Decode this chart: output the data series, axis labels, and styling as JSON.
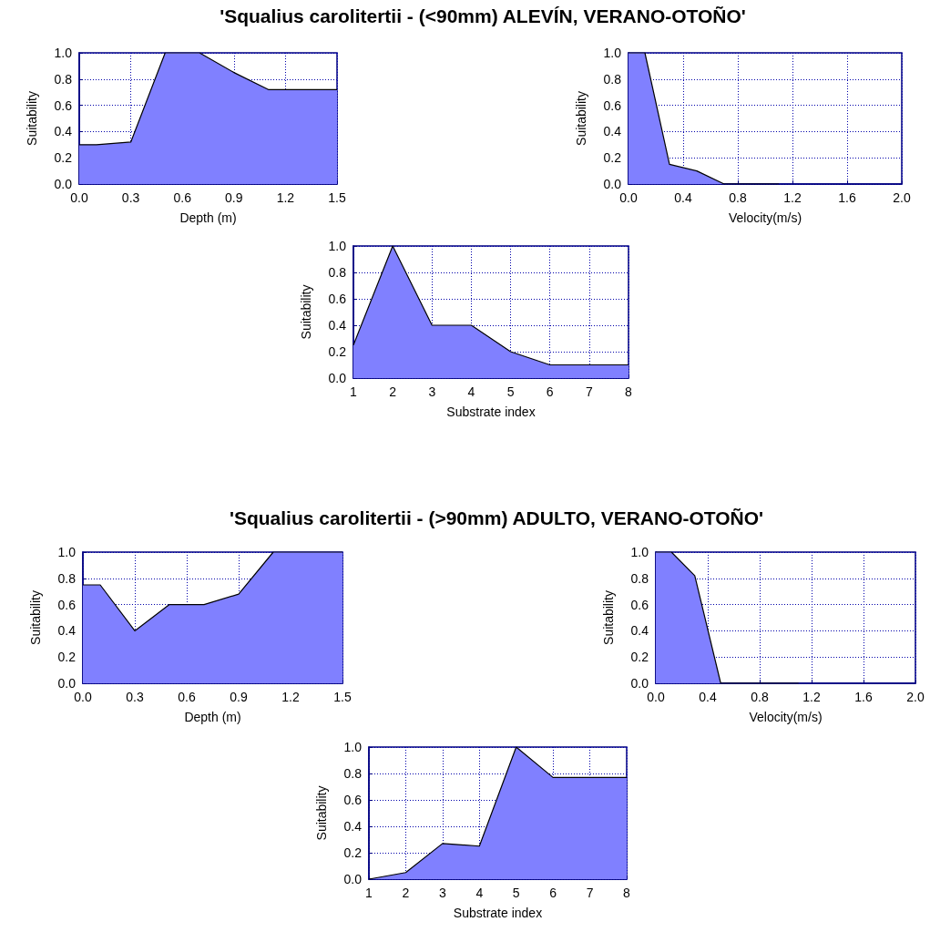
{
  "chart_data": [
    {
      "type": "area",
      "title": "'Squalius carolitertii - (<90mm) ALEVÍN, VERANO-OTOÑO'",
      "xlabel": "Depth (m)",
      "ylabel": "Suitability",
      "x": [
        0,
        0.1,
        0.3,
        0.5,
        0.7,
        0.9,
        1.1,
        1.5
      ],
      "series": [
        {
          "color": "#8080ff",
          "values": [
            0.3,
            0.3,
            0.32,
            1,
            1,
            0.85,
            0.72,
            0.72
          ]
        }
      ],
      "xlim": [
        0,
        1.5
      ],
      "xticks": [
        {
          "value": 0,
          "label": "0.0"
        },
        {
          "value": 0.3,
          "label": "0.3"
        },
        {
          "value": 0.6,
          "label": "0.6"
        },
        {
          "value": 0.9,
          "label": "0.9"
        },
        {
          "value": 1.2,
          "label": "1.2"
        },
        {
          "value": 1.5,
          "label": "1.5"
        }
      ],
      "ylim": [
        0,
        1
      ],
      "yticks": [
        {
          "value": 0,
          "label": "0.0"
        },
        {
          "value": 0.2,
          "label": "0.2"
        },
        {
          "value": 0.4,
          "label": "0.4"
        },
        {
          "value": 0.6,
          "label": "0.6"
        },
        {
          "value": 0.8,
          "label": "0.8"
        },
        {
          "value": 1,
          "label": "1.0"
        }
      ],
      "grid": true,
      "marker": "none"
    },
    {
      "type": "area",
      "xlabel": "Velocity(m/s)",
      "ylabel": "Suitability",
      "x": [
        0,
        0.12,
        0.3,
        0.5,
        0.7,
        1.1
      ],
      "series": [
        {
          "color": "#8080ff",
          "values": [
            1,
            1,
            0.15,
            0.1,
            0,
            0
          ]
        }
      ],
      "xlim": [
        0,
        2
      ],
      "xticks": [
        {
          "value": 0,
          "label": "0.0"
        },
        {
          "value": 0.4,
          "label": "0.4"
        },
        {
          "value": 0.8,
          "label": "0.8"
        },
        {
          "value": 1.2,
          "label": "1.2"
        },
        {
          "value": 1.6,
          "label": "1.6"
        },
        {
          "value": 2,
          "label": "2.0"
        }
      ],
      "ylim": [
        0,
        1
      ],
      "yticks": [
        {
          "value": 0,
          "label": "0.0"
        },
        {
          "value": 0.2,
          "label": "0.2"
        },
        {
          "value": 0.4,
          "label": "0.4"
        },
        {
          "value": 0.6,
          "label": "0.6"
        },
        {
          "value": 0.8,
          "label": "0.8"
        },
        {
          "value": 1,
          "label": "1.0"
        }
      ],
      "grid": true,
      "marker": "none"
    },
    {
      "type": "area",
      "xlabel": "Substrate index",
      "ylabel": "Suitability",
      "x": [
        1,
        2,
        3,
        4,
        5,
        6,
        7,
        8
      ],
      "series": [
        {
          "color": "#8080ff",
          "values": [
            0.25,
            1,
            0.4,
            0.4,
            0.2,
            0.1,
            0.1,
            0.1
          ]
        }
      ],
      "xlim": [
        1,
        8
      ],
      "xticks": [
        1,
        2,
        3,
        4,
        5,
        6,
        7,
        8
      ],
      "ylim": [
        0,
        1
      ],
      "yticks": [
        {
          "value": 0,
          "label": "0.0"
        },
        {
          "value": 0.2,
          "label": "0.2"
        },
        {
          "value": 0.4,
          "label": "0.4"
        },
        {
          "value": 0.6,
          "label": "0.6"
        },
        {
          "value": 0.8,
          "label": "0.8"
        },
        {
          "value": 1,
          "label": "1.0"
        }
      ],
      "grid": true,
      "marker": "none"
    },
    {
      "type": "area",
      "title": "'Squalius carolitertii - (>90mm) ADULTO, VERANO-OTOÑO'",
      "xlabel": "Depth (m)",
      "ylabel": "Suitability",
      "x": [
        0,
        0.1,
        0.3,
        0.5,
        0.7,
        0.9,
        1.1,
        1.5
      ],
      "series": [
        {
          "color": "#8080ff",
          "values": [
            0.75,
            0.75,
            0.4,
            0.6,
            0.6,
            0.68,
            1,
            1
          ]
        }
      ],
      "xlim": [
        0,
        1.5
      ],
      "xticks": [
        {
          "value": 0,
          "label": "0.0"
        },
        {
          "value": 0.3,
          "label": "0.3"
        },
        {
          "value": 0.6,
          "label": "0.6"
        },
        {
          "value": 0.9,
          "label": "0.9"
        },
        {
          "value": 1.2,
          "label": "1.2"
        },
        {
          "value": 1.5,
          "label": "1.5"
        }
      ],
      "ylim": [
        0,
        1
      ],
      "yticks": [
        {
          "value": 0,
          "label": "0.0"
        },
        {
          "value": 0.2,
          "label": "0.2"
        },
        {
          "value": 0.4,
          "label": "0.4"
        },
        {
          "value": 0.6,
          "label": "0.6"
        },
        {
          "value": 0.8,
          "label": "0.8"
        },
        {
          "value": 1,
          "label": "1.0"
        }
      ],
      "grid": true,
      "marker": "none"
    },
    {
      "type": "area",
      "xlabel": "Velocity(m/s)",
      "ylabel": "Suitability",
      "x": [
        0,
        0.12,
        0.3,
        0.5,
        1.1
      ],
      "series": [
        {
          "color": "#8080ff",
          "values": [
            1,
            1,
            0.82,
            0,
            0
          ]
        }
      ],
      "xlim": [
        0,
        2
      ],
      "xticks": [
        {
          "value": 0,
          "label": "0.0"
        },
        {
          "value": 0.4,
          "label": "0.4"
        },
        {
          "value": 0.8,
          "label": "0.8"
        },
        {
          "value": 1.2,
          "label": "1.2"
        },
        {
          "value": 1.6,
          "label": "1.6"
        },
        {
          "value": 2,
          "label": "2.0"
        }
      ],
      "ylim": [
        0,
        1
      ],
      "yticks": [
        {
          "value": 0,
          "label": "0.0"
        },
        {
          "value": 0.2,
          "label": "0.2"
        },
        {
          "value": 0.4,
          "label": "0.4"
        },
        {
          "value": 0.6,
          "label": "0.6"
        },
        {
          "value": 0.8,
          "label": "0.8"
        },
        {
          "value": 1,
          "label": "1.0"
        }
      ],
      "grid": true,
      "marker": "none"
    },
    {
      "type": "area",
      "xlabel": "Substrate index",
      "ylabel": "Suitability",
      "x": [
        1,
        2,
        3,
        4,
        5,
        6,
        7,
        8
      ],
      "series": [
        {
          "color": "#8080ff",
          "values": [
            0,
            0.05,
            0.27,
            0.25,
            1,
            0.77,
            0.77,
            0.77
          ]
        }
      ],
      "xlim": [
        1,
        8
      ],
      "xticks": [
        1,
        2,
        3,
        4,
        5,
        6,
        7,
        8
      ],
      "ylim": [
        0,
        1
      ],
      "yticks": [
        {
          "value": 0,
          "label": "0.0"
        },
        {
          "value": 0.2,
          "label": "0.2"
        },
        {
          "value": 0.4,
          "label": "0.4"
        },
        {
          "value": 0.6,
          "label": "0.6"
        },
        {
          "value": 0.8,
          "label": "0.8"
        },
        {
          "value": 1,
          "label": "1.0"
        }
      ],
      "grid": true,
      "marker": "none"
    }
  ]
}
